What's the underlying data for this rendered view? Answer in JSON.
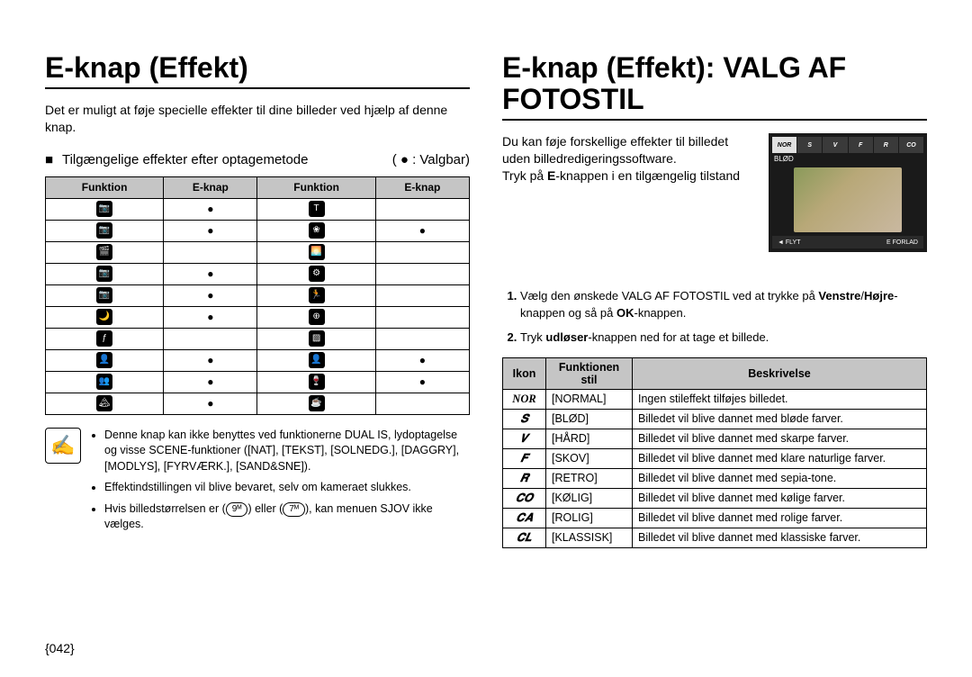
{
  "left": {
    "heading": "E-knap (Effekt)",
    "intro": "Det er muligt at føje specielle effekter til dine billeder ved hjælp af denne knap.",
    "subhead_left": "Tilgængelige effekter efter optagemetode",
    "subhead_right": "( ● : Valgbar)",
    "table": {
      "headers": [
        "Funktion",
        "E-knap",
        "Funktion",
        "E-knap"
      ],
      "rows": [
        {
          "icon1": "📷",
          "dot1": "●",
          "icon2": "T",
          "dot2": ""
        },
        {
          "icon1": "📷",
          "dot1": "●",
          "icon2": "❀",
          "dot2": "●"
        },
        {
          "icon1": "🎬",
          "dot1": "",
          "icon2": "🌅",
          "dot2": ""
        },
        {
          "icon1": "📷",
          "dot1": "●",
          "icon2": "⚙",
          "dot2": ""
        },
        {
          "icon1": "📷",
          "dot1": "●",
          "icon2": "🏃",
          "dot2": ""
        },
        {
          "icon1": "🌙",
          "dot1": "●",
          "icon2": "⊕",
          "dot2": ""
        },
        {
          "icon1": "ƒ",
          "dot1": "",
          "icon2": "▨",
          "dot2": ""
        },
        {
          "icon1": "👤",
          "dot1": "●",
          "icon2": "👤",
          "dot2": "●"
        },
        {
          "icon1": "👥",
          "dot1": "●",
          "icon2": "🍷",
          "dot2": "●"
        },
        {
          "icon1": "🏔",
          "dot1": "●",
          "icon2": "☕",
          "dot2": ""
        }
      ]
    },
    "note1": "Denne knap kan ikke benyttes ved funktionerne DUAL IS, lydoptagelse og visse SCENE-funktioner ([NAT], [TEKST], [SOLNEDG.], [DAGGRY], [MODLYS], [FYRVÆRK.], [SAND&SNE]).",
    "note2": "Effektindstillingen vil blive bevaret, selv om kameraet slukkes.",
    "note3_a": "Hvis billedstørrelsen er (",
    "note3_b": ") eller (",
    "note3_c": "), kan menuen SJOV ikke vælges.",
    "pill1": "9ᴹ",
    "pill2": "7ᴹ"
  },
  "right": {
    "heading": "E-knap (Effekt): VALG AF FOTOSTIL",
    "intro1": "Du kan føje forskellige effekter til billedet uden billedredigeringssoftware.",
    "intro2_a": "Tryk på ",
    "intro2_b": "E",
    "intro2_c": "-knappen i en tilgængelig tilstand",
    "preview": {
      "chips": [
        "NOR",
        "S",
        "V",
        "F",
        "R",
        "CO"
      ],
      "sel_label": "BLØD",
      "bottom_left": "◄ FLYT",
      "bottom_right": "E   FORLAD"
    },
    "step1_a": "Vælg den ønskede VALG AF FOTOSTIL ved at trykke på ",
    "step1_b": "Venstre",
    "step1_c": "/",
    "step1_d": "Højre",
    "step1_e": "-knappen og så på ",
    "step1_f": "OK",
    "step1_g": "-knappen.",
    "step2_a": "Tryk ",
    "step2_b": "udløser",
    "step2_c": "-knappen ned for at tage et billede.",
    "styles": {
      "headers": [
        "Ikon",
        "Funktionen stil",
        "Beskrivelse"
      ],
      "rows": [
        {
          "icon": "NOR",
          "name": "[NORMAL]",
          "desc": "Ingen stileffekt tilføjes billedet."
        },
        {
          "icon": "𝑺",
          "name": "[BLØD]",
          "desc": "Billedet vil blive dannet med bløde farver."
        },
        {
          "icon": "𝑽",
          "name": "[HÅRD]",
          "desc": "Billedet vil blive dannet med skarpe farver."
        },
        {
          "icon": "𝑭",
          "name": "[SKOV]",
          "desc": "Billedet vil blive dannet med klare naturlige farver."
        },
        {
          "icon": "𝑹",
          "name": "[RETRO]",
          "desc": "Billedet vil blive dannet med sepia-tone."
        },
        {
          "icon": "𝑪𝑶",
          "name": "[KØLIG]",
          "desc": "Billedet vil blive dannet med kølige farver."
        },
        {
          "icon": "𝑪𝑨",
          "name": "[ROLIG]",
          "desc": "Billedet vil blive dannet med rolige farver."
        },
        {
          "icon": "𝑪𝑳",
          "name": "[KLASSISK]",
          "desc": "Billedet vil blive dannet med klassiske farver."
        }
      ]
    }
  },
  "page_number": "{042}"
}
